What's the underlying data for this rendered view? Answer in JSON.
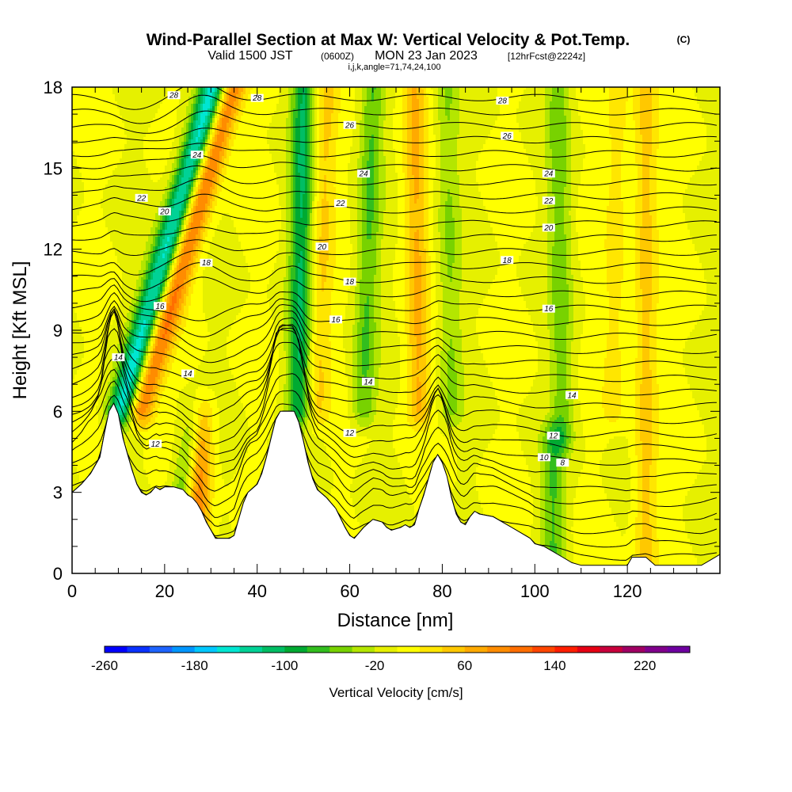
{
  "title": {
    "main": "Wind-Parallel Section at Max W: Vertical Velocity & Pot.Temp.",
    "copyright": "(C)",
    "line2_a": "Valid 1500 JST",
    "line2_b": "(0600Z)",
    "line2_c": "MON 23 Jan 2023",
    "line2_d": "[12hrFcst@2224z]",
    "line3": "i,j,k,angle=71,74,24,100"
  },
  "chart_data": {
    "type": "heatmap",
    "xlabel": "Distance [nm]",
    "ylabel": "Height [Kft MSL]",
    "xlim": [
      0,
      140
    ],
    "ylim": [
      0,
      18
    ],
    "x_ticks": [
      0,
      20,
      40,
      60,
      80,
      100,
      120
    ],
    "x_tick_labels": [
      "0",
      "20",
      "40",
      "60",
      "80",
      "100",
      "120"
    ],
    "y_ticks": [
      0,
      3,
      6,
      9,
      12,
      15,
      18
    ],
    "y_tick_labels": [
      "0",
      "3",
      "6",
      "9",
      "12",
      "15",
      "18"
    ],
    "colorbar": {
      "title": "Vertical Velocity [cm/s]",
      "min": -260,
      "max": 260,
      "step": 20,
      "labels": [
        "-260",
        "-180",
        "-100",
        "-20",
        "60",
        "140",
        "220"
      ],
      "label_values": [
        -260,
        -180,
        -100,
        -20,
        60,
        140,
        220
      ],
      "colors": [
        "#0000ff",
        "#0a32ff",
        "#1e64ff",
        "#0096ff",
        "#00c8ff",
        "#00e6d2",
        "#00d296",
        "#00be64",
        "#00aa32",
        "#32be1e",
        "#78d200",
        "#b4e600",
        "#e6f000",
        "#ffff00",
        "#ffe600",
        "#ffc800",
        "#ffaa00",
        "#ff8c00",
        "#ff6e00",
        "#ff4600",
        "#ff1e00",
        "#e60014",
        "#c8003c",
        "#a00064",
        "#80008c",
        "#6e00a0"
      ]
    },
    "terrain": [
      [
        0,
        3.0
      ],
      [
        2,
        3.3
      ],
      [
        4,
        3.7
      ],
      [
        6,
        4.3
      ],
      [
        7,
        5.2
      ],
      [
        8,
        6.0
      ],
      [
        9,
        6.3
      ],
      [
        10,
        5.9
      ],
      [
        11,
        5.0
      ],
      [
        12,
        4.4
      ],
      [
        13,
        3.8
      ],
      [
        14,
        3.3
      ],
      [
        15,
        3.0
      ],
      [
        16,
        2.9
      ],
      [
        17,
        3.0
      ],
      [
        18,
        3.2
      ],
      [
        19,
        3.1
      ],
      [
        20,
        3.2
      ],
      [
        22,
        3.2
      ],
      [
        24,
        3.1
      ],
      [
        25,
        2.9
      ],
      [
        26,
        2.8
      ],
      [
        27,
        2.6
      ],
      [
        28,
        2.3
      ],
      [
        29,
        1.9
      ],
      [
        30,
        1.6
      ],
      [
        31,
        1.3
      ],
      [
        34,
        1.3
      ],
      [
        35,
        1.4
      ],
      [
        36,
        2.0
      ],
      [
        37,
        2.6
      ],
      [
        38,
        3.0
      ],
      [
        40,
        3.3
      ],
      [
        41,
        3.7
      ],
      [
        42,
        4.3
      ],
      [
        43,
        5.0
      ],
      [
        44,
        5.7
      ],
      [
        45,
        6.0
      ],
      [
        48,
        6.0
      ],
      [
        49,
        5.6
      ],
      [
        50,
        4.9
      ],
      [
        51,
        4.1
      ],
      [
        52,
        3.5
      ],
      [
        53,
        3.1
      ],
      [
        55,
        2.8
      ],
      [
        57,
        2.4
      ],
      [
        59,
        1.7
      ],
      [
        60,
        1.4
      ],
      [
        61,
        1.3
      ],
      [
        62,
        1.5
      ],
      [
        63,
        1.7
      ],
      [
        65,
        2.0
      ],
      [
        67,
        1.9
      ],
      [
        68,
        1.7
      ],
      [
        69,
        1.6
      ],
      [
        71,
        1.7
      ],
      [
        72,
        1.8
      ],
      [
        73,
        1.7
      ],
      [
        74,
        1.8
      ],
      [
        75,
        2.4
      ],
      [
        76,
        2.9
      ],
      [
        77,
        3.5
      ],
      [
        78,
        4.1
      ],
      [
        79,
        4.4
      ],
      [
        80,
        4.1
      ],
      [
        81,
        3.6
      ],
      [
        82,
        2.8
      ],
      [
        83,
        2.2
      ],
      [
        84,
        1.9
      ],
      [
        85,
        1.8
      ],
      [
        86,
        2.1
      ],
      [
        87,
        2.3
      ],
      [
        88,
        2.2
      ],
      [
        91,
        2.1
      ],
      [
        93,
        1.9
      ],
      [
        95,
        1.7
      ],
      [
        97,
        1.5
      ],
      [
        99,
        1.3
      ],
      [
        100,
        1.1
      ],
      [
        102,
        1.0
      ],
      [
        104,
        0.8
      ],
      [
        106,
        0.6
      ],
      [
        108,
        0.4
      ],
      [
        110,
        0.3
      ],
      [
        120,
        0.3
      ],
      [
        121,
        0.6
      ],
      [
        124,
        0.6
      ],
      [
        126,
        0.3
      ],
      [
        136,
        0.3
      ],
      [
        138,
        0.5
      ],
      [
        140,
        0.7
      ]
    ],
    "w_features": [
      {
        "kind": "updraft",
        "x0": 14,
        "x1": 34,
        "z0": 6,
        "z1": 18,
        "peak": 150
      },
      {
        "kind": "downdraft",
        "x0": 11,
        "x1": 31,
        "z0": 6,
        "z1": 18,
        "peak": -190
      },
      {
        "kind": "downdraft",
        "x0": 20,
        "x1": 27,
        "z0": 0,
        "z1": 6,
        "peak": -60
      },
      {
        "kind": "updraft",
        "x0": 27,
        "x1": 28,
        "z0": 0,
        "z1": 6,
        "peak": 90
      },
      {
        "kind": "downdraft",
        "x0": 49,
        "x1": 50,
        "z0": 6,
        "z1": 18,
        "peak": -100
      },
      {
        "kind": "updraft",
        "x0": 53,
        "x1": 55,
        "z0": 6,
        "z1": 18,
        "peak": 45
      },
      {
        "kind": "downdraft",
        "x0": 63,
        "x1": 65,
        "z0": 6,
        "z1": 18,
        "peak": -60
      },
      {
        "kind": "updraft",
        "x0": 75,
        "x1": 74,
        "z0": 6,
        "z1": 18,
        "peak": 60
      },
      {
        "kind": "downdraft",
        "x0": 82,
        "x1": 81,
        "z0": 6,
        "z1": 18,
        "peak": -40
      },
      {
        "kind": "downdraft",
        "x0": 106,
        "x1": 105,
        "z0": 5,
        "z1": 18,
        "peak": -50
      },
      {
        "kind": "updraft",
        "x0": 117,
        "x1": 118,
        "z0": 6,
        "z1": 18,
        "peak": 30
      },
      {
        "kind": "updraft",
        "x0": 124,
        "x1": 124,
        "z0": 0,
        "z1": 18,
        "peak": 50
      },
      {
        "kind": "downdraft",
        "x0": 104,
        "x1": 104,
        "z0": 0,
        "z1": 5,
        "peak": -60
      }
    ],
    "theta_contour_labels": [
      {
        "text": "28",
        "x": 22,
        "z": 17.7
      },
      {
        "text": "28",
        "x": 40,
        "z": 17.6
      },
      {
        "text": "28",
        "x": 93,
        "z": 17.5
      },
      {
        "text": "26",
        "x": 60,
        "z": 16.6
      },
      {
        "text": "26",
        "x": 94,
        "z": 16.2
      },
      {
        "text": "24",
        "x": 27,
        "z": 15.5
      },
      {
        "text": "24",
        "x": 63,
        "z": 14.8
      },
      {
        "text": "24",
        "x": 103,
        "z": 14.8
      },
      {
        "text": "22",
        "x": 15,
        "z": 13.9
      },
      {
        "text": "22",
        "x": 58,
        "z": 13.7
      },
      {
        "text": "22",
        "x": 103,
        "z": 13.8
      },
      {
        "text": "20",
        "x": 20,
        "z": 13.4
      },
      {
        "text": "20",
        "x": 54,
        "z": 12.1
      },
      {
        "text": "20",
        "x": 103,
        "z": 12.8
      },
      {
        "text": "18",
        "x": 29,
        "z": 11.5
      },
      {
        "text": "18",
        "x": 60,
        "z": 10.8
      },
      {
        "text": "18",
        "x": 94,
        "z": 11.6
      },
      {
        "text": "16",
        "x": 19,
        "z": 9.9
      },
      {
        "text": "16",
        "x": 57,
        "z": 9.4
      },
      {
        "text": "16",
        "x": 103,
        "z": 9.8
      },
      {
        "text": "14",
        "x": 10,
        "z": 8.0
      },
      {
        "text": "14",
        "x": 25,
        "z": 7.4
      },
      {
        "text": "14",
        "x": 64,
        "z": 7.1
      },
      {
        "text": "14",
        "x": 108,
        "z": 6.6
      },
      {
        "text": "12",
        "x": 18,
        "z": 4.8
      },
      {
        "text": "12",
        "x": 60,
        "z": 5.2
      },
      {
        "text": "12",
        "x": 104,
        "z": 5.1
      },
      {
        "text": "10",
        "x": 102,
        "z": 4.3
      },
      {
        "text": "8",
        "x": 106,
        "z": 4.1
      }
    ]
  }
}
